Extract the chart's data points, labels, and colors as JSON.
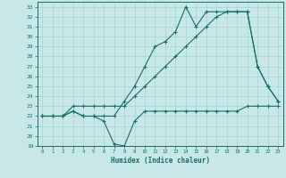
{
  "xlabel": "Humidex (Indice chaleur)",
  "ylabel": "",
  "xlim": [
    -0.5,
    23.5
  ],
  "ylim": [
    19,
    33.5
  ],
  "yticks": [
    19,
    20,
    21,
    22,
    23,
    24,
    25,
    26,
    27,
    28,
    29,
    30,
    31,
    32,
    33
  ],
  "xticks": [
    0,
    1,
    2,
    3,
    4,
    5,
    6,
    7,
    8,
    9,
    10,
    11,
    12,
    13,
    14,
    15,
    16,
    17,
    18,
    19,
    20,
    21,
    22,
    23
  ],
  "bg_color": "#c8e8e8",
  "line_color": "#1a6b6b",
  "grid_color": "#9ecece",
  "line1_x": [
    0,
    1,
    2,
    3,
    4,
    5,
    6,
    7,
    8,
    9,
    10,
    11,
    12,
    13,
    14,
    15,
    16,
    17,
    18,
    19,
    20,
    21,
    22,
    23
  ],
  "line1_y": [
    22,
    22,
    22,
    22.5,
    22,
    22,
    21.5,
    19.2,
    19.0,
    21.5,
    22.5,
    22.5,
    22.5,
    22.5,
    22.5,
    22.5,
    22.5,
    22.5,
    22.5,
    22.5,
    23,
    23,
    23,
    23
  ],
  "line2_x": [
    0,
    1,
    2,
    3,
    4,
    5,
    6,
    7,
    8,
    9,
    10,
    11,
    12,
    13,
    14,
    15,
    16,
    17,
    18,
    19,
    20,
    21,
    22,
    23
  ],
  "line2_y": [
    22,
    22,
    22,
    22.5,
    22,
    22,
    22,
    22,
    23.5,
    25,
    27,
    29,
    29.5,
    30.5,
    33,
    31,
    32.5,
    32.5,
    32.5,
    32.5,
    32.5,
    27,
    25,
    23.5
  ],
  "line3_x": [
    0,
    1,
    2,
    3,
    4,
    5,
    6,
    7,
    8,
    9,
    10,
    11,
    12,
    13,
    14,
    15,
    16,
    17,
    18,
    19,
    20,
    21,
    22,
    23
  ],
  "line3_y": [
    22,
    22,
    22,
    23,
    23,
    23,
    23,
    23,
    23,
    24,
    25,
    26,
    27,
    28,
    29,
    30,
    31,
    32,
    32.5,
    32.5,
    32.5,
    27,
    25,
    23.5
  ]
}
